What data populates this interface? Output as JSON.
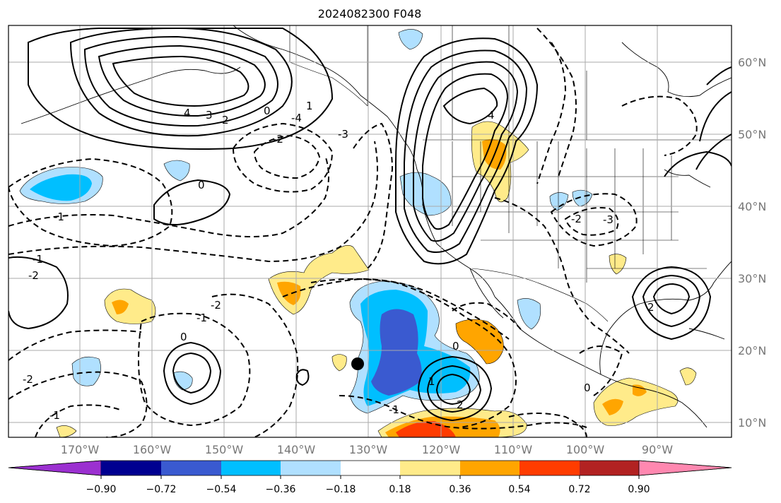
{
  "title": "2024082300 F048",
  "map": {
    "lon_ticks": [
      "170°W",
      "160°W",
      "150°W",
      "140°W",
      "130°W",
      "120°W",
      "110°W",
      "100°W",
      "90°W"
    ],
    "lat_ticks": [
      "60°N",
      "50°N",
      "40°N",
      "30°N",
      "20°N",
      "10°N"
    ],
    "grid": true,
    "storm_marker": {
      "lon": -130.5,
      "lat": 18.2
    }
  },
  "colorbar": {
    "labels": [
      "−0.90",
      "−0.72",
      "−0.54",
      "−0.36",
      "−0.18",
      "0.18",
      "0.36",
      "0.54",
      "0.72",
      "0.90"
    ],
    "colors": [
      "#9b30d0",
      "#000090",
      "#3a5ad0",
      "#00bfff",
      "#b0e0ff",
      "#ffffff",
      "#ffeb8a",
      "#ffa500",
      "#ff3c00",
      "#b22222",
      "#ff88b0"
    ],
    "extend": "both"
  },
  "contour_labels": [
    "4",
    "3",
    "2",
    "1",
    "0",
    "-1",
    "-2",
    "-3",
    "-4",
    "0",
    "4",
    "2",
    "-2",
    "-3",
    "-2",
    "-1",
    "-2",
    "0",
    "-1",
    "-2",
    "1",
    "-1",
    "0",
    "2",
    "0",
    "-1"
  ],
  "colors": {
    "solid_contour": "#000000",
    "dashed_contour": "#000000",
    "coast": "#000000",
    "grid": "#aaaaaa"
  }
}
